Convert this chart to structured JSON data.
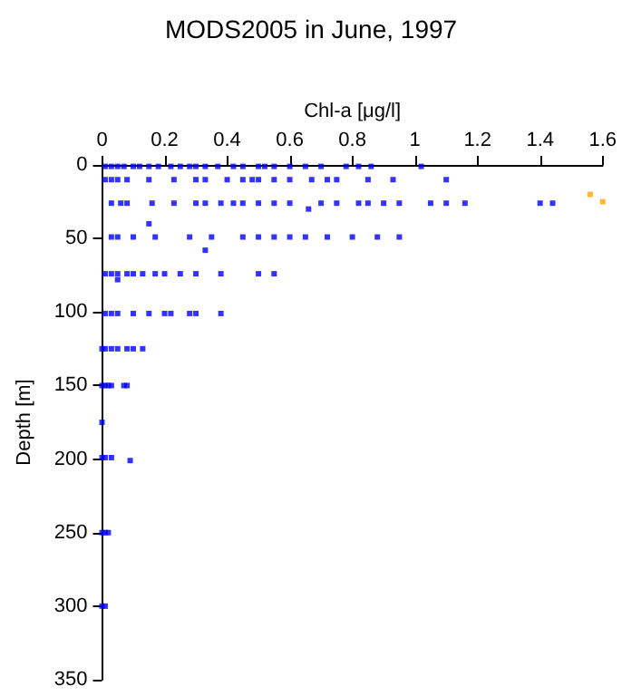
{
  "chart_data": {
    "type": "scatter",
    "title": "MODS2005 in June, 1997",
    "xlabel": "Chl-a [μg/l]",
    "ylabel": "Depth [m]",
    "xlim": [
      0,
      1.6
    ],
    "xticks": [
      0,
      0.2,
      0.4,
      0.6,
      0.8,
      1,
      1.2,
      1.4,
      1.6
    ],
    "ylim": [
      350,
      0
    ],
    "yticks": [
      0,
      50,
      100,
      150,
      200,
      250,
      300,
      350
    ],
    "grid": false,
    "marker": "square",
    "series": [
      {
        "color": "#0000ff",
        "x": [
          0.01,
          0.03,
          0.05,
          0.07,
          0.1,
          0.12,
          0.15,
          0.18,
          0.22,
          0.25,
          0.28,
          0.3,
          0.33,
          0.37,
          0.42,
          0.45,
          0.5,
          0.52,
          0.55,
          0.6,
          0.65,
          0.7,
          0.78,
          0.82,
          0.86,
          1.02,
          0.01,
          0.03,
          0.05,
          0.08,
          0.15,
          0.23,
          0.3,
          0.33,
          0.4,
          0.45,
          0.48,
          0.5,
          0.55,
          0.6,
          0.67,
          0.72,
          0.75,
          0.85,
          0.93,
          1.1,
          0.03,
          0.06,
          0.08,
          0.16,
          0.23,
          0.3,
          0.33,
          0.38,
          0.42,
          0.45,
          0.5,
          0.55,
          0.6,
          0.66,
          0.7,
          0.75,
          0.82,
          0.85,
          0.9,
          0.95,
          1.05,
          1.1,
          1.16,
          1.4,
          1.44,
          0.15,
          0.03,
          0.05,
          0.1,
          0.17,
          0.28,
          0.35,
          0.45,
          0.5,
          0.55,
          0.6,
          0.65,
          0.72,
          0.8,
          0.88,
          0.95,
          0.33,
          0.01,
          0.03,
          0.05,
          0.08,
          0.1,
          0.13,
          0.17,
          0.2,
          0.25,
          0.3,
          0.38,
          0.5,
          0.55,
          0.05,
          0.01,
          0.03,
          0.05,
          0.1,
          0.15,
          0.2,
          0.22,
          0.28,
          0.3,
          0.38,
          0,
          0.01,
          0.03,
          0.05,
          0.08,
          0.1,
          0.13,
          0,
          0.01,
          0.02,
          0.03,
          0.07,
          0.08,
          0,
          0,
          0.01,
          0.03,
          0.09,
          0,
          0.01,
          0.02,
          0,
          0.01
        ],
        "values": [
          1,
          1,
          1,
          1,
          1,
          1,
          1,
          1,
          1,
          1,
          1,
          1,
          1,
          1,
          1,
          1,
          1,
          1,
          1,
          1,
          1,
          1,
          1,
          1,
          1,
          1,
          10,
          10,
          10,
          10,
          10,
          10,
          10,
          10,
          10,
          10,
          10,
          10,
          10,
          10,
          10,
          10,
          10,
          10,
          10,
          10,
          26,
          26,
          26,
          26,
          26,
          26,
          26,
          26,
          26,
          26,
          26,
          26,
          26,
          30,
          26,
          26,
          26,
          26,
          26,
          26,
          26,
          26,
          26,
          26,
          26,
          40,
          49,
          49,
          49,
          49,
          49,
          49,
          49,
          49,
          49,
          49,
          49,
          49,
          49,
          49,
          49,
          58,
          74,
          74,
          74,
          74,
          74,
          74,
          74,
          74,
          74,
          74,
          74,
          74,
          74,
          78,
          101,
          101,
          101,
          101,
          101,
          101,
          101,
          101,
          101,
          101,
          125,
          125,
          125,
          125,
          125,
          125,
          125,
          150,
          150,
          150,
          150,
          150,
          150,
          175,
          199,
          199,
          199,
          201,
          250,
          250,
          250,
          300,
          300
        ]
      },
      {
        "color": "#ffa500",
        "x": [
          1.56,
          1.6
        ],
        "values": [
          20,
          25
        ]
      }
    ]
  }
}
